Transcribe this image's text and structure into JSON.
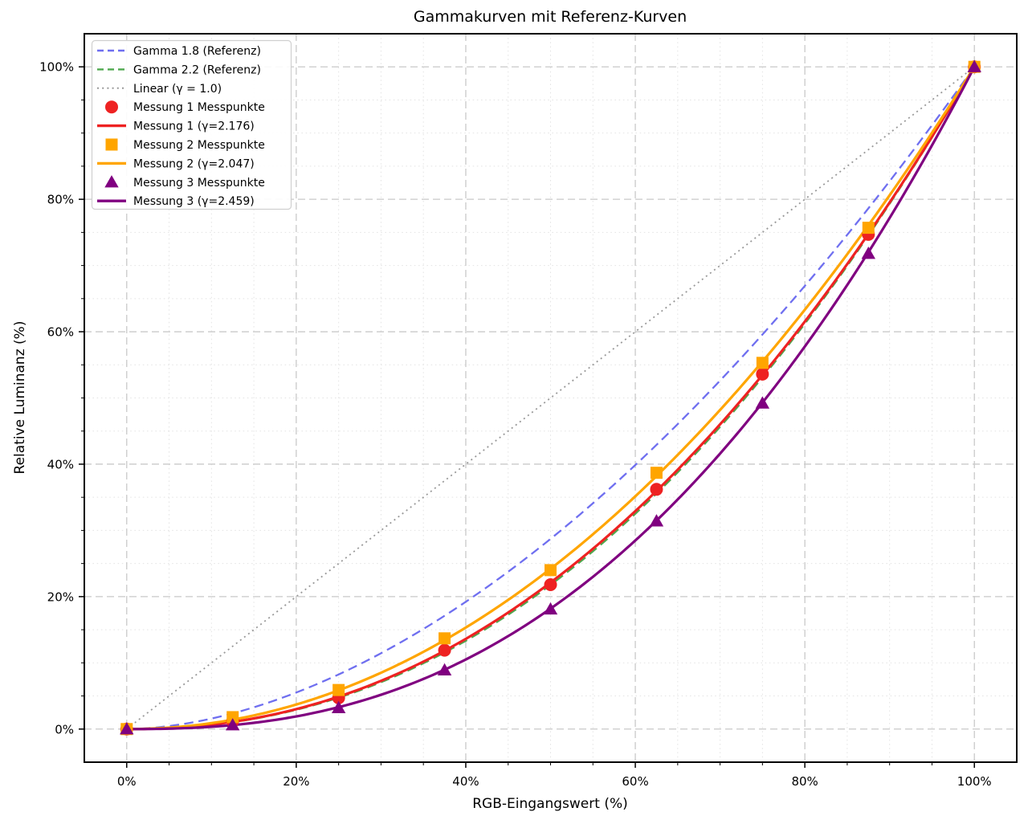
{
  "chart_data": {
    "type": "line",
    "title": "Gammakurven mit Referenz-Kurven",
    "xlabel": "RGB-Eingangswert (%)",
    "ylabel": "Relative Luminanz (%)",
    "xlim": [
      -5,
      105
    ],
    "ylim": [
      -5,
      105
    ],
    "xticks": {
      "values": [
        0,
        20,
        40,
        60,
        80,
        100
      ],
      "labels": [
        "0%",
        "20%",
        "40%",
        "60%",
        "80%",
        "100%"
      ]
    },
    "yticks": {
      "values": [
        0,
        20,
        40,
        60,
        80,
        100
      ],
      "labels": [
        "0%",
        "20%",
        "40%",
        "60%",
        "80%",
        "100%"
      ]
    },
    "minor_tick_step": 5,
    "grid": {
      "major": true,
      "minor": true,
      "major_style": "dashed",
      "minor_style": "dotted",
      "major_color": "#c9c9c9",
      "minor_color": "#e4e4e4"
    },
    "legend": {
      "position": "upper left"
    },
    "x_scatter": [
      0,
      12.5,
      25,
      37.5,
      50,
      62.5,
      75,
      87.5,
      100
    ],
    "series": [
      {
        "label": "Gamma 1.8 (Referenz)",
        "kind": "curve",
        "gamma": 1.8,
        "color": "#6f6ff0",
        "line": "dashed",
        "width": 2.3
      },
      {
        "label": "Gamma 2.2 (Referenz)",
        "kind": "curve",
        "gamma": 2.2,
        "color": "#4fa84f",
        "line": "dashed",
        "width": 2.3
      },
      {
        "label": "Linear (γ = 1.0)",
        "kind": "curve",
        "gamma": 1.0,
        "color": "#999999",
        "line": "dotted",
        "width": 1.8
      },
      {
        "label": "Messung 1 Messpunkte",
        "kind": "scatter",
        "marker": "circle",
        "color": "#ee2222",
        "values": [
          0.0,
          1.2,
          4.7,
          11.9,
          21.8,
          36.2,
          53.6,
          74.7,
          100.0
        ]
      },
      {
        "label": "Messung 1 (γ=2.176)",
        "kind": "curve",
        "gamma": 2.176,
        "color": "#ee2222",
        "line": "solid",
        "width": 3.2
      },
      {
        "label": "Messung 2 Messpunkte",
        "kind": "scatter",
        "marker": "square",
        "color": "#ffa500",
        "values": [
          0.0,
          1.8,
          5.9,
          13.7,
          24.0,
          38.7,
          55.3,
          75.7,
          100.0
        ]
      },
      {
        "label": "Messung 2 (γ=2.047)",
        "kind": "curve",
        "gamma": 2.047,
        "color": "#ffa500",
        "line": "solid",
        "width": 3.2
      },
      {
        "label": "Messung 3 Messpunkte",
        "kind": "scatter",
        "marker": "triangle",
        "color": "#800080",
        "values": [
          0.0,
          0.6,
          3.2,
          8.9,
          18.1,
          31.4,
          49.2,
          71.8,
          100.0
        ]
      },
      {
        "label": "Messung 3 (γ=2.459)",
        "kind": "curve",
        "gamma": 2.459,
        "color": "#800080",
        "line": "solid",
        "width": 3.2
      }
    ]
  }
}
